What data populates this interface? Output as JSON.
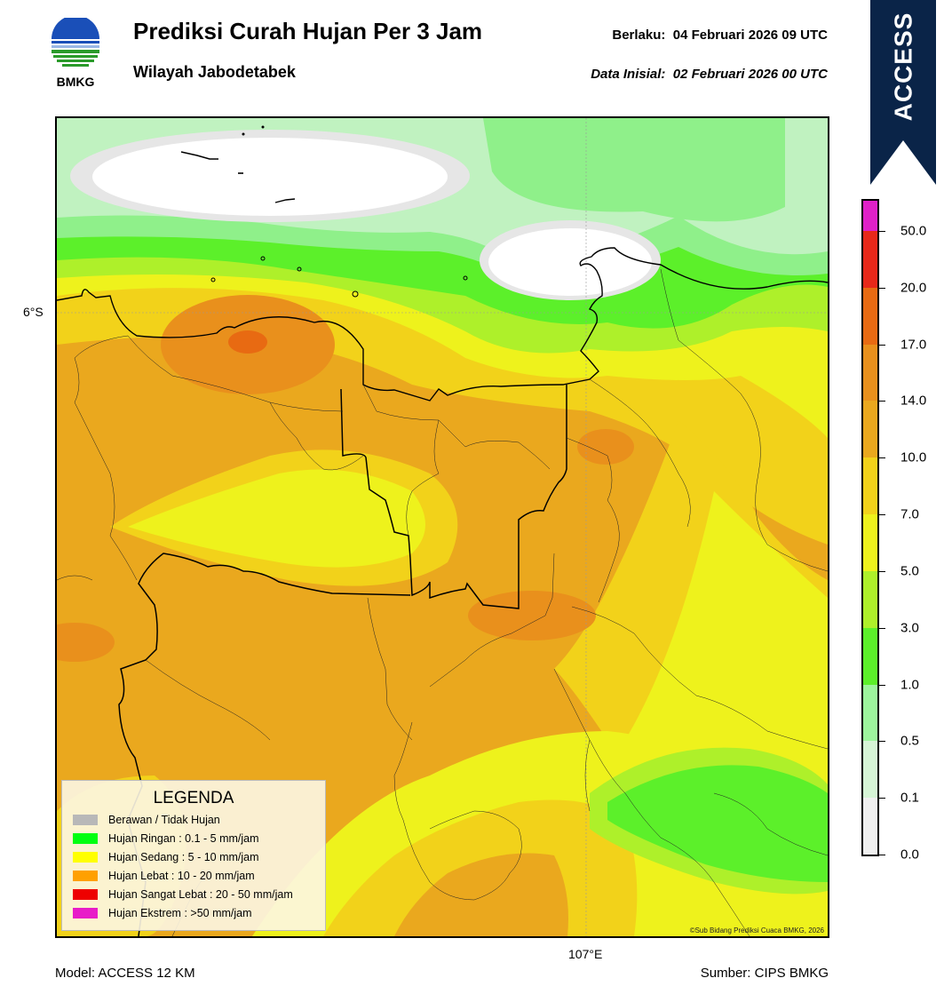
{
  "header": {
    "logo_text": "BMKG",
    "title": "Prediksi Curah Hujan Per 3 Jam",
    "subtitle": "Wilayah Jabodetabek",
    "valid_label": "Berlaku:",
    "valid_value": "04 Februari 2026 09 UTC",
    "initial_label": "Data Inisial:",
    "initial_value": "02 Februari 2026 00 UTC"
  },
  "ribbon": {
    "text": "ACCESS",
    "color": "#0a2448"
  },
  "map": {
    "lat_label": "6°S",
    "lon_label": "107°E",
    "copyright": "©Sub Bidang Prediksi Cuaca BMKG, 2026"
  },
  "colorbar": {
    "segments": [
      {
        "color": "#f0f0f0"
      },
      {
        "color": "#d6f5d6"
      },
      {
        "color": "#9df59d"
      },
      {
        "color": "#5cf02a"
      },
      {
        "color": "#aef02a"
      },
      {
        "color": "#eef21c"
      },
      {
        "color": "#f2d21a"
      },
      {
        "color": "#eaa81e"
      },
      {
        "color": "#e9901c"
      },
      {
        "color": "#e86a12"
      },
      {
        "color": "#e8281a"
      },
      {
        "color": "#e020c8"
      }
    ],
    "labels": [
      "0.0",
      "0.1",
      "0.5",
      "1.0",
      "3.0",
      "5.0",
      "7.0",
      "10.0",
      "14.0",
      "17.0",
      "20.0",
      "50.0"
    ]
  },
  "legend": {
    "title": "LEGENDA",
    "items": [
      {
        "label": "Berawan / Tidak Hujan",
        "color": "#b8b8b8"
      },
      {
        "label": "Hujan Ringan : 0.1 - 5 mm/jam",
        "color": "#00ff10"
      },
      {
        "label": "Hujan Sedang : 5 - 10 mm/jam",
        "color": "#ffff00"
      },
      {
        "label": "Hujan Lebat : 10 - 20 mm/jam",
        "color": "#ffa000"
      },
      {
        "label": "Hujan Sangat Lebat : 20 - 50 mm/jam",
        "color": "#ee0000"
      },
      {
        "label": "Hujan Ekstrem : >50 mm/jam",
        "color": "#e81cc8"
      }
    ]
  },
  "footer": {
    "model": "Model: ACCESS 12 KM",
    "source": "Sumber: CIPS BMKG"
  }
}
